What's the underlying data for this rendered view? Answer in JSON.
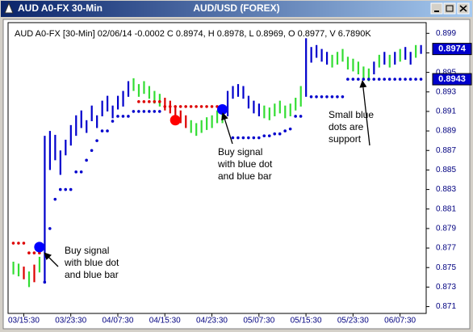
{
  "window_title": "AUD A0-FX 30-Min",
  "chart_data": {
    "type": "range-bar",
    "title": "AUD/USD (FOREX)",
    "info": "AUD A0-FX [30-Min] 02/06/14  -0.0002 C 0.8974, H 0.8978, L 0.8969, O 0.8977, V 6.7890K",
    "x": [
      -2,
      -1,
      0,
      1,
      2,
      3,
      4,
      5,
      6,
      7,
      8,
      9,
      10,
      11,
      12,
      13,
      14,
      15,
      16,
      17,
      18,
      19,
      20,
      21,
      22,
      23,
      24,
      25,
      26,
      27,
      28,
      29,
      30,
      31,
      32,
      33,
      34,
      35,
      36,
      37,
      38,
      39,
      40,
      41,
      42,
      43,
      44,
      45,
      46,
      47,
      48,
      49,
      50,
      51,
      52,
      53,
      54,
      55,
      56,
      57,
      58,
      59,
      60,
      61,
      62,
      63,
      64,
      65,
      66,
      67,
      68,
      69,
      70,
      71,
      72,
      73,
      74,
      75,
      76
    ],
    "high": [
      0.8756,
      0.8754,
      0.8751,
      0.8746,
      0.8753,
      0.8761,
      0.8885,
      0.889,
      0.8886,
      0.887,
      0.8881,
      0.8896,
      0.8906,
      0.8911,
      0.8901,
      0.8916,
      0.8906,
      0.8921,
      0.8926,
      0.8916,
      0.8926,
      0.8931,
      0.8941,
      0.8944,
      0.8938,
      0.8941,
      0.8936,
      0.8931,
      0.8928,
      0.8924,
      0.8921,
      0.8916,
      0.8911,
      0.8906,
      0.8901,
      0.8898,
      0.8901,
      0.8904,
      0.8906,
      0.8911,
      0.8911,
      0.8931,
      0.8936,
      0.8938,
      0.8936,
      0.8926,
      0.8921,
      0.8918,
      0.8916,
      0.8914,
      0.8918,
      0.8921,
      0.8916,
      0.8918,
      0.8924,
      0.8936,
      0.8985,
      0.8976,
      0.8978,
      0.8974,
      0.8971,
      0.8968,
      0.8971,
      0.8974,
      0.8966,
      0.8964,
      0.8961,
      0.8956,
      0.8954,
      0.8961,
      0.8968,
      0.8971,
      0.8968,
      0.8971,
      0.8974,
      0.8976,
      0.8971,
      0.8978,
      0.8978
    ],
    "low": [
      0.8743,
      0.8741,
      0.8738,
      0.873,
      0.8735,
      0.8745,
      0.8735,
      0.885,
      0.886,
      0.8845,
      0.8865,
      0.8875,
      0.8885,
      0.8893,
      0.8888,
      0.89,
      0.8893,
      0.8905,
      0.891,
      0.8903,
      0.8912,
      0.8915,
      0.8925,
      0.8931,
      0.8925,
      0.8928,
      0.8923,
      0.8918,
      0.8915,
      0.8911,
      0.8908,
      0.8903,
      0.8898,
      0.8893,
      0.8888,
      0.8885,
      0.8888,
      0.8891,
      0.8893,
      0.8898,
      0.8898,
      0.8905,
      0.8923,
      0.8925,
      0.8923,
      0.8913,
      0.8908,
      0.8905,
      0.8903,
      0.8901,
      0.8905,
      0.8908,
      0.8903,
      0.8905,
      0.8911,
      0.8915,
      0.8925,
      0.896,
      0.8965,
      0.8961,
      0.8958,
      0.8955,
      0.8958,
      0.8961,
      0.8953,
      0.8951,
      0.8948,
      0.8943,
      0.8941,
      0.8948,
      0.8955,
      0.8958,
      0.8955,
      0.8958,
      0.8961,
      0.8963,
      0.8958,
      0.8965,
      0.8969
    ],
    "colors": [
      "#33dd33",
      "#33dd33",
      "#dd0000",
      "#33dd33",
      "#dd0000",
      "#33dd33",
      "#0000cc",
      "#0000cc",
      "#0000cc",
      "#0000cc",
      "#0000cc",
      "#0000cc",
      "#0000cc",
      "#0000cc",
      "#0000cc",
      "#0000cc",
      "#0000cc",
      "#0000cc",
      "#0000cc",
      "#0000cc",
      "#0000cc",
      "#0000cc",
      "#0000cc",
      "#33dd33",
      "#33dd33",
      "#33dd33",
      "#33dd33",
      "#33dd33",
      "#33dd33",
      "#dd0000",
      "#dd0000",
      "#dd0000",
      "#dd0000",
      "#dd0000",
      "#33dd33",
      "#33dd33",
      "#33dd33",
      "#33dd33",
      "#33dd33",
      "#33dd33",
      "#33dd33",
      "#0000cc",
      "#0000cc",
      "#0000cc",
      "#0000cc",
      "#0000cc",
      "#0000cc",
      "#0000cc",
      "#33dd33",
      "#33dd33",
      "#33dd33",
      "#33dd33",
      "#33dd33",
      "#33dd33",
      "#33dd33",
      "#33dd33",
      "#0000cc",
      "#0000cc",
      "#0000cc",
      "#0000cc",
      "#0000cc",
      "#33dd33",
      "#33dd33",
      "#33dd33",
      "#33dd33",
      "#33dd33",
      "#33dd33",
      "#33dd33",
      "#33dd33",
      "#0000cc",
      "#33dd33",
      "#0000cc",
      "#33dd33",
      "#0000cc",
      "#33dd33",
      "#0000cc",
      "#0000cc",
      "#33dd33",
      "#0000cc"
    ],
    "dots": [
      {
        "color": "#0000cc",
        "x": [
          4,
          5,
          6,
          7,
          8,
          9,
          10,
          11,
          12,
          13,
          14,
          15,
          16,
          17,
          18,
          19,
          20,
          21,
          22,
          23,
          24,
          25,
          26,
          40,
          41,
          42,
          43,
          44,
          45,
          46,
          47,
          48,
          49,
          50,
          51,
          52,
          53,
          55,
          56,
          57,
          58,
          59,
          60,
          61,
          62,
          63,
          64,
          65,
          66,
          67,
          68,
          69,
          70,
          71,
          72,
          73,
          74,
          75,
          76
        ],
        "values": [
          0.8735,
          0.879,
          0.882,
          0.883,
          0.883,
          0.883,
          0.8848,
          0.8848,
          0.886,
          0.887,
          0.888,
          0.889,
          0.889,
          0.89,
          0.8905,
          0.8905,
          0.8905,
          0.891,
          0.891,
          0.891,
          0.891,
          0.891,
          0.891,
          0.8883,
          0.8883,
          0.8883,
          0.8883,
          0.8883,
          0.8883,
          0.8885,
          0.8885,
          0.8887,
          0.8887,
          0.889,
          0.8892,
          0.8905,
          0.8905,
          0.8925,
          0.8925,
          0.8925,
          0.8925,
          0.8925,
          0.8925,
          0.8925,
          0.8943,
          0.8943,
          0.8943,
          0.8943,
          0.8943,
          0.8943,
          0.8943,
          0.8943,
          0.8943,
          0.8943,
          0.8943,
          0.8943,
          0.8943,
          0.8943,
          0.8943
        ]
      },
      {
        "color": "#dd0000",
        "x": [
          -2,
          -1,
          0,
          1,
          2,
          3,
          22,
          23,
          24,
          25,
          26,
          27,
          28,
          29,
          30,
          31,
          32,
          33,
          34,
          35,
          36,
          37,
          38
        ],
        "values": [
          0.8775,
          0.8775,
          0.8775,
          0.8765,
          0.8765,
          0.8765,
          0.892,
          0.892,
          0.892,
          0.892,
          0.892,
          0.8915,
          0.8915,
          0.8915,
          0.8915,
          0.8915,
          0.8915,
          0.8915,
          0.8915,
          0.8915,
          0.8915,
          0.8915,
          0.8915
        ]
      }
    ],
    "signals": [
      {
        "x": 3,
        "value": 0.8771,
        "color": "#0000ff"
      },
      {
        "x": 29,
        "value": 0.8901,
        "color": "#ff0000"
      },
      {
        "x": 38,
        "value": 0.8912,
        "color": "#0000ff"
      }
    ],
    "price_labels": [
      0.8974,
      0.8943
    ],
    "xlim": [
      -3,
      77
    ],
    "xticks": [
      {
        "value": 0,
        "label": "03/15:30"
      },
      {
        "value": 9,
        "label": "03/23:30"
      },
      {
        "value": 18,
        "label": "04/07:30"
      },
      {
        "value": 27,
        "label": "04/15:30"
      },
      {
        "value": 36,
        "label": "04/23:30"
      },
      {
        "value": 45,
        "label": "05/07:30"
      },
      {
        "value": 54,
        "label": "05/15:30"
      },
      {
        "value": 63,
        "label": "05/23:30"
      },
      {
        "value": 72,
        "label": "06/07:30"
      }
    ],
    "ylim": [
      0.8703,
      0.9001
    ],
    "yticks": [
      0.871,
      0.873,
      0.875,
      0.877,
      0.879,
      0.881,
      0.883,
      0.885,
      0.887,
      0.889,
      0.891,
      0.893,
      0.895,
      0.897,
      0.899
    ],
    "annotations": [
      {
        "lines": [
          "Buy signal",
          "with blue dot",
          "and blue bar"
        ]
      },
      {
        "lines": [
          "Buy signal",
          "with blue dot",
          "and blue bar"
        ]
      },
      {
        "lines": [
          "Small blue",
          "dots are",
          "support"
        ]
      }
    ]
  }
}
